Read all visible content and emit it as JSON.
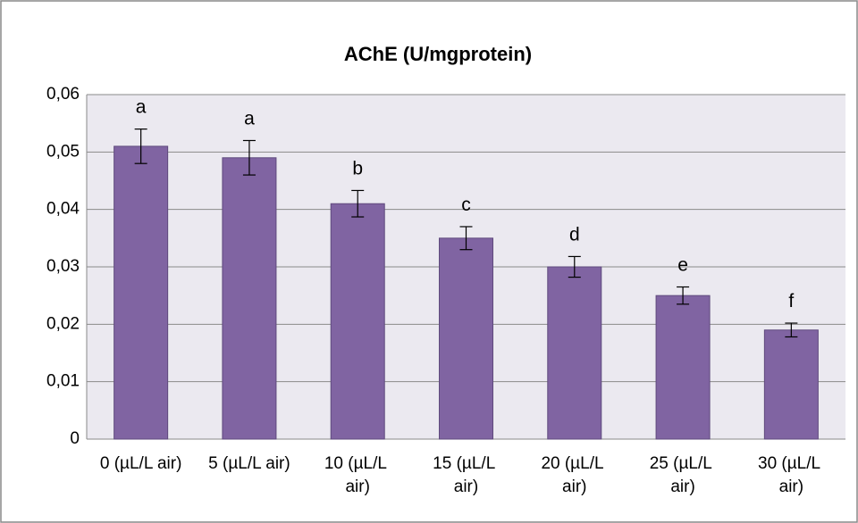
{
  "chart_data": {
    "type": "bar",
    "title": "AChE (U/mgprotein)",
    "categories": [
      "0 (µL/L air)",
      "5 (µL/L air)",
      "10 (µL/L air)",
      "15 (µL/L air)",
      "20 (µL/L air)",
      "25 (µL/L air)",
      "30 (µL/L air)"
    ],
    "values": [
      0.051,
      0.049,
      0.041,
      0.035,
      0.03,
      0.025,
      0.019
    ],
    "errors": [
      0.003,
      0.003,
      0.0023,
      0.002,
      0.0018,
      0.0015,
      0.0012
    ],
    "annotations": [
      "a",
      "a",
      "b",
      "c",
      "d",
      "e",
      "f"
    ],
    "color": "#8064a2",
    "ylim": [
      0,
      0.06
    ],
    "yticks": [
      0,
      {
        "value": 0.01,
        "label": "0,01"
      },
      {
        "value": 0.02,
        "label": "0,02"
      },
      {
        "value": 0.03,
        "label": "0,03"
      },
      {
        "value": 0.04,
        "label": "0,04"
      },
      {
        "value": 0.05,
        "label": "0,05"
      },
      {
        "value": 0.06,
        "label": "0,06"
      }
    ],
    "grid": true
  }
}
